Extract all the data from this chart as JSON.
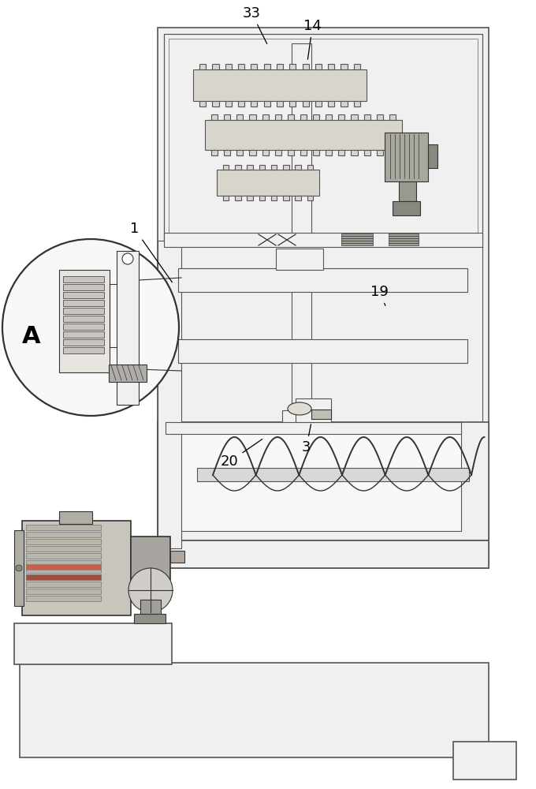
{
  "bg_color": "#ffffff",
  "lc": "#555555",
  "lc_dark": "#333333",
  "lc_thin": "#777777",
  "fill_light": "#f0f0f0",
  "fill_mid": "#d8d8d8",
  "fill_gear": "#d0cfc8",
  "fill_motor": "#c8c8c0",
  "fill_pink": "#e8d5c8"
}
